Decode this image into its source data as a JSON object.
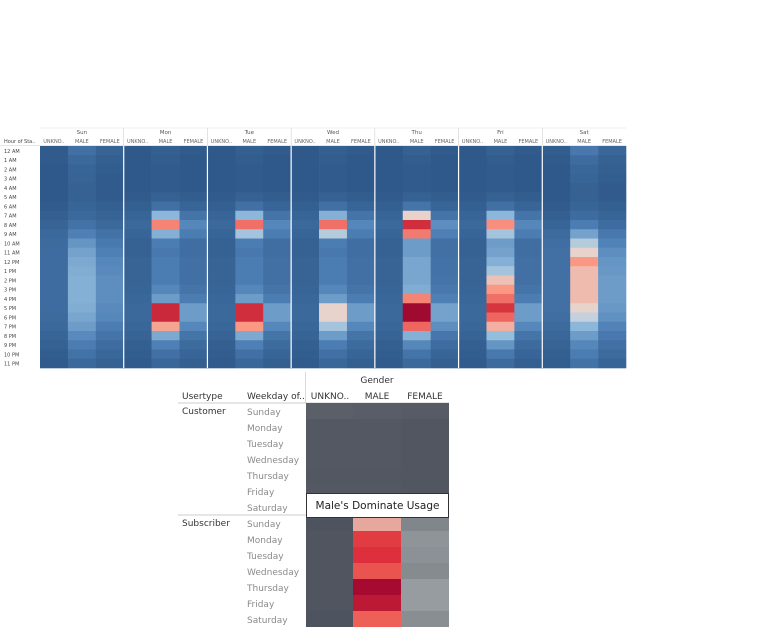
{
  "chart_data": [
    {
      "type": "heatmap",
      "title": "",
      "row_header": "Hour of Sta..",
      "rows": [
        "12 AM",
        "1 AM",
        "2 AM",
        "3 AM",
        "4 AM",
        "5 AM",
        "6 AM",
        "7 AM",
        "8 AM",
        "9 AM",
        "10 AM",
        "11 AM",
        "12 PM",
        "1 PM",
        "2 PM",
        "3 PM",
        "4 PM",
        "5 PM",
        "6 PM",
        "7 PM",
        "8 PM",
        "9 PM",
        "10 PM",
        "11 PM"
      ],
      "days": [
        "Sun",
        "Mon",
        "Tue",
        "Wed",
        "Thu",
        "Fri",
        "Sat"
      ],
      "genders": [
        "UNKNO..",
        "MALE",
        "FEMALE"
      ],
      "scale": "0 = dark blue, 0.5 = light, 1 = dark red",
      "values": {
        "Sun": {
          "UNKNO..": [
            0.03,
            0.03,
            0.02,
            0.02,
            0.02,
            0.02,
            0.03,
            0.05,
            0.07,
            0.1,
            0.11,
            0.12,
            0.12,
            0.12,
            0.12,
            0.12,
            0.12,
            0.12,
            0.11,
            0.1,
            0.08,
            0.06,
            0.04,
            0.03
          ],
          "MALE": [
            0.14,
            0.1,
            0.08,
            0.07,
            0.06,
            0.06,
            0.08,
            0.1,
            0.15,
            0.22,
            0.28,
            0.32,
            0.34,
            0.35,
            0.36,
            0.36,
            0.36,
            0.35,
            0.33,
            0.3,
            0.25,
            0.2,
            0.15,
            0.1
          ],
          "FEMALE": [
            0.07,
            0.05,
            0.04,
            0.03,
            0.03,
            0.03,
            0.05,
            0.07,
            0.1,
            0.15,
            0.19,
            0.22,
            0.24,
            0.25,
            0.26,
            0.26,
            0.26,
            0.25,
            0.24,
            0.2,
            0.16,
            0.12,
            0.09,
            0.06
          ]
        },
        "Mon": {
          "UNKNO..": [
            0.02,
            0.02,
            0.02,
            0.02,
            0.02,
            0.03,
            0.05,
            0.08,
            0.1,
            0.08,
            0.06,
            0.06,
            0.07,
            0.07,
            0.07,
            0.08,
            0.09,
            0.1,
            0.1,
            0.09,
            0.07,
            0.05,
            0.04,
            0.03
          ],
          "MALE": [
            0.05,
            0.04,
            0.03,
            0.03,
            0.03,
            0.06,
            0.14,
            0.38,
            0.66,
            0.36,
            0.2,
            0.18,
            0.2,
            0.2,
            0.2,
            0.24,
            0.3,
            0.88,
            0.88,
            0.6,
            0.34,
            0.22,
            0.14,
            0.09
          ],
          "FEMALE": [
            0.03,
            0.02,
            0.02,
            0.02,
            0.02,
            0.04,
            0.08,
            0.16,
            0.24,
            0.2,
            0.13,
            0.13,
            0.14,
            0.14,
            0.14,
            0.16,
            0.2,
            0.3,
            0.3,
            0.24,
            0.16,
            0.11,
            0.08,
            0.05
          ]
        },
        "Tue": {
          "UNKNO..": [
            0.02,
            0.02,
            0.02,
            0.02,
            0.02,
            0.03,
            0.05,
            0.08,
            0.1,
            0.08,
            0.06,
            0.06,
            0.07,
            0.07,
            0.07,
            0.08,
            0.09,
            0.1,
            0.1,
            0.09,
            0.07,
            0.05,
            0.04,
            0.03
          ],
          "MALE": [
            0.05,
            0.04,
            0.03,
            0.03,
            0.03,
            0.06,
            0.14,
            0.38,
            0.7,
            0.42,
            0.2,
            0.18,
            0.2,
            0.2,
            0.2,
            0.24,
            0.3,
            0.86,
            0.86,
            0.62,
            0.34,
            0.22,
            0.14,
            0.09
          ],
          "FEMALE": [
            0.03,
            0.02,
            0.02,
            0.02,
            0.02,
            0.04,
            0.08,
            0.16,
            0.24,
            0.2,
            0.13,
            0.13,
            0.14,
            0.14,
            0.14,
            0.16,
            0.2,
            0.3,
            0.3,
            0.24,
            0.16,
            0.11,
            0.08,
            0.05
          ]
        },
        "Wed": {
          "UNKNO..": [
            0.02,
            0.02,
            0.02,
            0.02,
            0.02,
            0.03,
            0.05,
            0.08,
            0.1,
            0.08,
            0.06,
            0.06,
            0.07,
            0.07,
            0.07,
            0.08,
            0.09,
            0.1,
            0.1,
            0.09,
            0.07,
            0.05,
            0.04,
            0.03
          ],
          "MALE": [
            0.05,
            0.04,
            0.03,
            0.03,
            0.03,
            0.06,
            0.14,
            0.36,
            0.7,
            0.44,
            0.2,
            0.18,
            0.2,
            0.2,
            0.2,
            0.24,
            0.3,
            0.52,
            0.52,
            0.42,
            0.3,
            0.2,
            0.14,
            0.09
          ],
          "FEMALE": [
            0.03,
            0.02,
            0.02,
            0.02,
            0.02,
            0.04,
            0.08,
            0.16,
            0.24,
            0.2,
            0.13,
            0.13,
            0.14,
            0.14,
            0.14,
            0.16,
            0.2,
            0.3,
            0.3,
            0.24,
            0.16,
            0.11,
            0.08,
            0.05
          ]
        },
        "Thu": {
          "UNKNO..": [
            0.02,
            0.02,
            0.02,
            0.02,
            0.02,
            0.03,
            0.05,
            0.08,
            0.1,
            0.08,
            0.06,
            0.06,
            0.07,
            0.07,
            0.07,
            0.08,
            0.09,
            0.1,
            0.1,
            0.09,
            0.07,
            0.05,
            0.04,
            0.03
          ],
          "MALE": [
            0.06,
            0.04,
            0.03,
            0.03,
            0.03,
            0.06,
            0.16,
            0.52,
            0.86,
            0.68,
            0.3,
            0.3,
            0.33,
            0.33,
            0.33,
            0.35,
            0.66,
            1.0,
            1.0,
            0.72,
            0.36,
            0.24,
            0.16,
            0.1
          ],
          "FEMALE": [
            0.03,
            0.02,
            0.02,
            0.02,
            0.02,
            0.04,
            0.08,
            0.16,
            0.26,
            0.22,
            0.14,
            0.14,
            0.15,
            0.15,
            0.16,
            0.18,
            0.22,
            0.32,
            0.32,
            0.26,
            0.17,
            0.12,
            0.08,
            0.05
          ]
        },
        "Fri": {
          "UNKNO..": [
            0.02,
            0.02,
            0.02,
            0.02,
            0.02,
            0.03,
            0.05,
            0.08,
            0.1,
            0.08,
            0.06,
            0.06,
            0.07,
            0.07,
            0.07,
            0.08,
            0.09,
            0.1,
            0.1,
            0.09,
            0.07,
            0.05,
            0.04,
            0.03
          ],
          "MALE": [
            0.06,
            0.04,
            0.03,
            0.03,
            0.03,
            0.06,
            0.14,
            0.38,
            0.64,
            0.42,
            0.3,
            0.32,
            0.36,
            0.42,
            0.55,
            0.62,
            0.7,
            0.84,
            0.72,
            0.58,
            0.4,
            0.28,
            0.18,
            0.11
          ],
          "FEMALE": [
            0.03,
            0.02,
            0.02,
            0.02,
            0.02,
            0.04,
            0.08,
            0.16,
            0.24,
            0.2,
            0.13,
            0.13,
            0.14,
            0.14,
            0.14,
            0.16,
            0.2,
            0.3,
            0.3,
            0.24,
            0.16,
            0.11,
            0.08,
            0.05
          ]
        },
        "Sat": {
          "UNKNO..": [
            0.04,
            0.03,
            0.02,
            0.02,
            0.02,
            0.02,
            0.03,
            0.05,
            0.08,
            0.11,
            0.13,
            0.14,
            0.14,
            0.14,
            0.14,
            0.14,
            0.14,
            0.14,
            0.13,
            0.11,
            0.09,
            0.07,
            0.05,
            0.04
          ],
          "MALE": [
            0.18,
            0.12,
            0.09,
            0.08,
            0.06,
            0.06,
            0.08,
            0.12,
            0.2,
            0.32,
            0.44,
            0.52,
            0.62,
            0.56,
            0.56,
            0.56,
            0.56,
            0.52,
            0.46,
            0.38,
            0.3,
            0.24,
            0.2,
            0.15
          ],
          "FEMALE": [
            0.09,
            0.06,
            0.05,
            0.04,
            0.03,
            0.03,
            0.05,
            0.08,
            0.12,
            0.18,
            0.23,
            0.26,
            0.28,
            0.29,
            0.3,
            0.3,
            0.3,
            0.29,
            0.27,
            0.23,
            0.18,
            0.14,
            0.11,
            0.08
          ]
        }
      }
    },
    {
      "type": "heatmap",
      "title": "Gender",
      "row_headers": [
        "Usertype",
        "Weekday of.."
      ],
      "columns": [
        "UNKNO..",
        "MALE",
        "FEMALE"
      ],
      "weekdays": [
        "Sunday",
        "Monday",
        "Tuesday",
        "Wednesday",
        "Thursday",
        "Friday",
        "Saturday"
      ],
      "groups": [
        {
          "usertype": "Customer",
          "values": [
            [
              0.22,
              0.2,
              0.16
            ],
            [
              0.12,
              0.12,
              0.09
            ],
            [
              0.12,
              0.12,
              0.09
            ],
            [
              0.12,
              0.12,
              0.09
            ],
            [
              0.11,
              0.11,
              0.09
            ],
            [
              0.12,
              0.12,
              0.09
            ],
            [
              0.22,
              0.22,
              0.18
            ]
          ]
        },
        {
          "usertype": "Subscriber",
          "values": [
            [
              0.06,
              0.7,
              0.42
            ],
            [
              0.08,
              0.88,
              0.47
            ],
            [
              0.08,
              0.9,
              0.46
            ],
            [
              0.08,
              0.84,
              0.44
            ],
            [
              0.08,
              1.0,
              0.5
            ],
            [
              0.08,
              0.96,
              0.5
            ],
            [
              0.06,
              0.82,
              0.45
            ]
          ]
        }
      ],
      "annotation": "Male's Dominate Usage"
    }
  ]
}
